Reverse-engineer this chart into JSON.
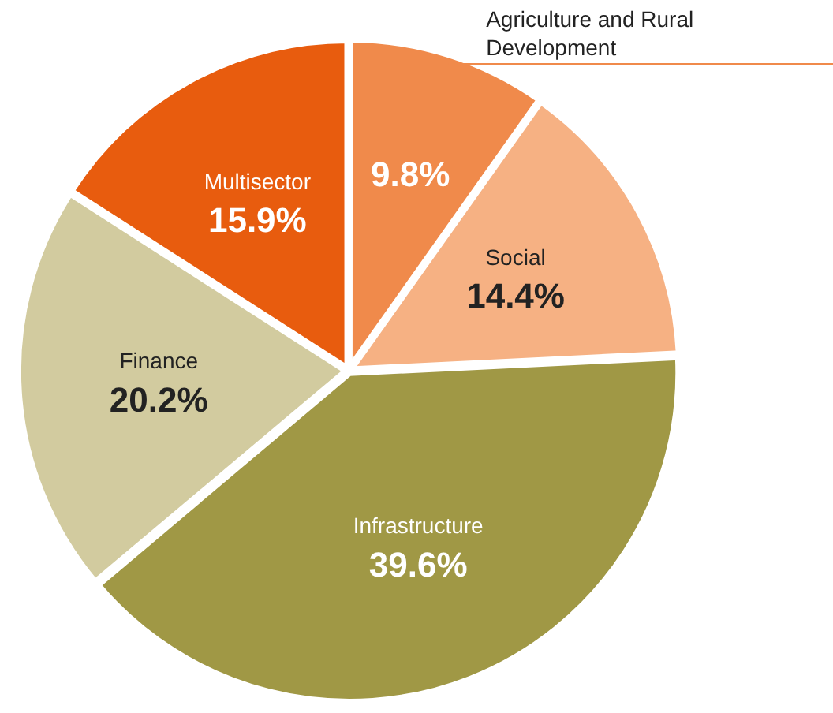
{
  "chart_data": {
    "type": "pie",
    "categories": [
      "Agriculture and Rural Development",
      "Social",
      "Infrastructure",
      "Finance",
      "Multisector"
    ],
    "values": [
      9.8,
      14.4,
      39.6,
      20.2,
      15.9
    ],
    "value_labels": [
      "9.8%",
      "14.4%",
      "39.6%",
      "20.2%",
      "15.9%"
    ],
    "colors": [
      "#f08a4b",
      "#f6b183",
      "#a09845",
      "#d2cb9f",
      "#e85c0e"
    ],
    "legend": false
  }
}
